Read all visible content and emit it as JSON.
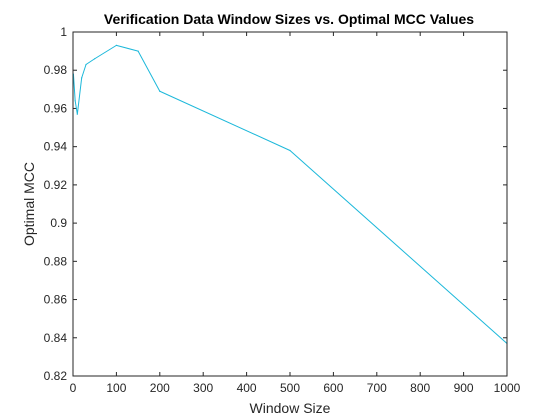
{
  "chart_data": {
    "type": "line",
    "title": "Verification Data Window Sizes vs. Optimal MCC Values",
    "xlabel": "Window Size",
    "ylabel": "Optimal MCC",
    "xlim": [
      0,
      1000
    ],
    "ylim": [
      0.82,
      1
    ],
    "xticks": [
      0,
      100,
      200,
      300,
      400,
      500,
      600,
      700,
      800,
      900,
      1000
    ],
    "yticks": [
      0.82,
      0.84,
      0.86,
      0.88,
      0.9,
      0.92,
      0.94,
      0.96,
      0.98,
      1
    ],
    "xtick_labels": [
      "0",
      "100",
      "200",
      "300",
      "400",
      "500",
      "600",
      "700",
      "800",
      "900",
      "1000"
    ],
    "ytick_labels": [
      "0.82",
      "0.84",
      "0.86",
      "0.88",
      "0.9",
      "0.92",
      "0.94",
      "0.96",
      "0.98",
      "1"
    ],
    "grid": false,
    "series": [
      {
        "color": "#1CB8DA",
        "x": [
          1,
          5,
          10,
          20,
          30,
          50,
          100,
          150,
          200,
          500,
          1000
        ],
        "y": [
          0.978,
          0.964,
          0.957,
          0.976,
          0.983,
          0.986,
          0.993,
          0.99,
          0.969,
          0.938,
          0.837
        ]
      }
    ]
  }
}
